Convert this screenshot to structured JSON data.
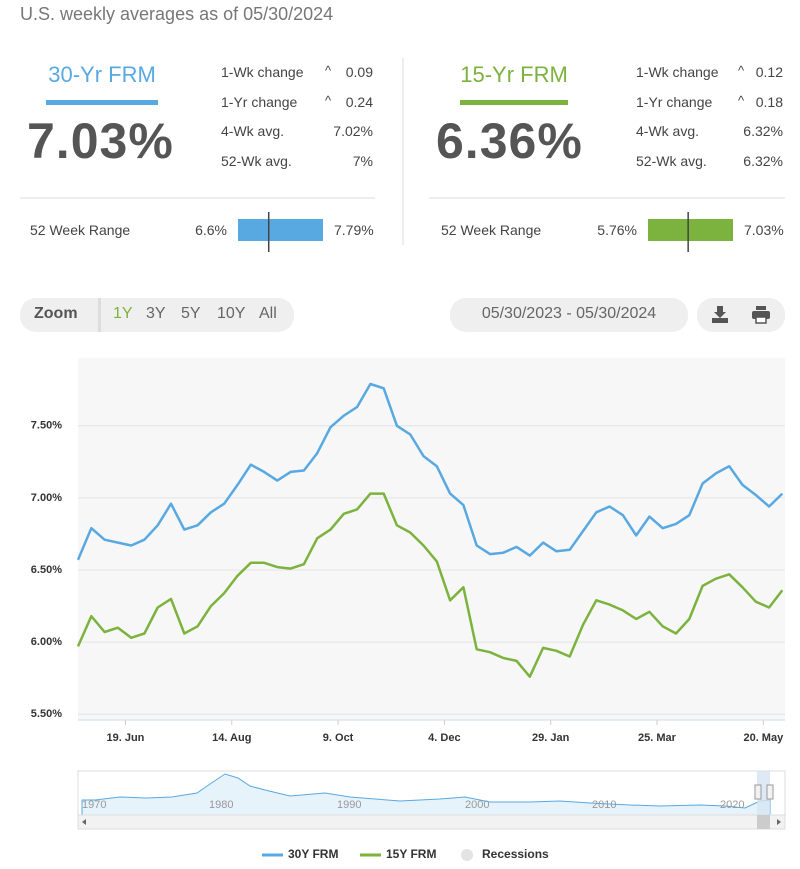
{
  "header": {
    "subtitle": "U.S. weekly averages as of 05/30/2024"
  },
  "panels": [
    {
      "title": "30-Yr FRM",
      "color": "#58a9e2",
      "rate": {
        "value": 7.03,
        "label": "7.03%"
      },
      "stats": [
        {
          "label": "1-Wk change",
          "value": "0.09"
        },
        {
          "label": "1-Yr change",
          "value": "0.24"
        },
        {
          "label": "4-Wk avg.",
          "value": "7.02%"
        },
        {
          "label": "52-Wk avg.",
          "value": "7%"
        }
      ],
      "range_label": "52 Week Range",
      "range": {
        "low": {
          "value": 6.6,
          "label": "6.6%"
        },
        "high": {
          "value": 7.79,
          "label": "7.79%"
        }
      }
    },
    {
      "title": "15-Yr FRM",
      "color": "#7cb23e",
      "rate": {
        "value": 6.36,
        "label": "6.36%"
      },
      "stats": [
        {
          "label": "1-Wk change",
          "value": "0.12"
        },
        {
          "label": "1-Yr change",
          "value": "0.18"
        },
        {
          "label": "4-Wk avg.",
          "value": "6.32%"
        },
        {
          "label": "52-Wk avg.",
          "value": "6.32%"
        }
      ],
      "range_label": "52 Week Range",
      "range": {
        "low": {
          "value": 5.76,
          "label": "5.76%"
        },
        "high": {
          "value": 7.03,
          "label": "7.03%"
        }
      }
    }
  ],
  "toolbar": {
    "zoom": "Zoom",
    "buttons": [
      "1Y",
      "3Y",
      "5Y",
      "10Y",
      "All"
    ],
    "date_range": "05/30/2023 - 05/30/2024"
  },
  "chart_data": {
    "type": "line",
    "categories": [
      null,
      null,
      null,
      null,
      null,
      null,
      null,
      null,
      null,
      null,
      null,
      null,
      null,
      null,
      null,
      null,
      null,
      null,
      null,
      null,
      null,
      null,
      null,
      null,
      null,
      null,
      null,
      null,
      null,
      null,
      null,
      null,
      null,
      null,
      null,
      null,
      null,
      null,
      null,
      null,
      null,
      null,
      null,
      null,
      null,
      null,
      null,
      null,
      null,
      null,
      null,
      null,
      null,
      null
    ],
    "series": [
      {
        "name": "30Y FRM",
        "color": "#58a9e2",
        "values": [
          6.57,
          6.79,
          6.71,
          6.69,
          6.67,
          6.71,
          6.81,
          6.96,
          6.78,
          6.81,
          6.9,
          6.96,
          7.09,
          7.23,
          7.18,
          7.12,
          7.18,
          7.19,
          7.31,
          7.49,
          7.57,
          7.63,
          7.79,
          7.76,
          7.5,
          7.44,
          7.29,
          7.22,
          7.03,
          6.95,
          6.67,
          6.61,
          6.62,
          6.66,
          6.6,
          6.69,
          6.63,
          6.64,
          6.77,
          6.9,
          6.94,
          6.88,
          6.74,
          6.87,
          6.79,
          6.82,
          6.88,
          7.1,
          7.17,
          7.22,
          7.09,
          7.02,
          6.94,
          7.03
        ]
      },
      {
        "name": "15Y FRM",
        "color": "#7cb23e",
        "values": [
          5.97,
          6.18,
          6.07,
          6.1,
          6.03,
          6.06,
          6.24,
          6.3,
          6.06,
          6.11,
          6.25,
          6.34,
          6.46,
          6.55,
          6.55,
          6.52,
          6.51,
          6.54,
          6.72,
          6.78,
          6.89,
          6.92,
          7.03,
          7.03,
          6.81,
          6.76,
          6.67,
          6.56,
          6.29,
          6.38,
          5.95,
          5.93,
          5.89,
          5.87,
          5.76,
          5.96,
          5.94,
          5.9,
          6.12,
          6.29,
          6.26,
          6.22,
          6.16,
          6.21,
          6.11,
          6.06,
          6.16,
          6.39,
          6.44,
          6.47,
          6.38,
          6.28,
          6.24,
          6.36
        ]
      }
    ],
    "xlim": [
      0,
      53.2
    ],
    "xticks": [
      {
        "value": 3.57,
        "label": "19. Jun"
      },
      {
        "value": 11.57,
        "label": "14. Aug"
      },
      {
        "value": 19.57,
        "label": "9. Oct"
      },
      {
        "value": 27.57,
        "label": "4. Dec"
      },
      {
        "value": 35.57,
        "label": "29. Jan"
      },
      {
        "value": 43.57,
        "label": "25. Mar"
      },
      {
        "value": 51.57,
        "label": "20. May"
      }
    ],
    "ylim": [
      5.46,
      7.97
    ],
    "yticks": [
      {
        "value": 5.5,
        "label": "5.50%"
      },
      {
        "value": 6,
        "label": "6.00%"
      },
      {
        "value": 6.5,
        "label": "6.50%"
      },
      {
        "value": 7,
        "label": "7.00%"
      },
      {
        "value": 7.5,
        "label": "7.50%"
      }
    ],
    "grid": true,
    "extra_legend": {
      "name": "Recessions",
      "color": "#e3e3e3"
    }
  },
  "navigator": {
    "years": [
      "1970",
      "1980",
      "1990",
      "2000",
      "2010",
      "2020"
    ]
  }
}
